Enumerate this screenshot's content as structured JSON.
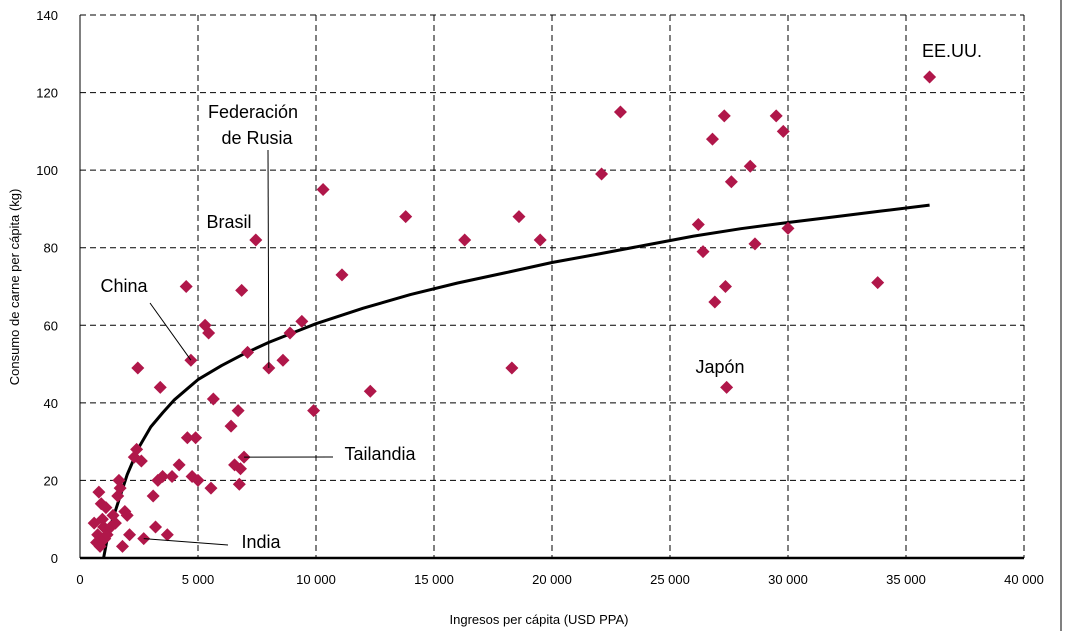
{
  "chart_data": {
    "type": "scatter",
    "xlabel": "Ingresos per cápita (USD PPA)",
    "ylabel": "Consumo de carne per cápita (kg)",
    "xlim": [
      0,
      40000
    ],
    "ylim": [
      0,
      140
    ],
    "x_ticks": [
      0,
      5000,
      10000,
      15000,
      20000,
      25000,
      30000,
      35000,
      40000
    ],
    "x_tick_labels": [
      "0",
      "5 000",
      "10 000",
      "15 000",
      "20 000",
      "25 000",
      "30 000",
      "35 000",
      "40 000"
    ],
    "y_ticks": [
      0,
      20,
      40,
      60,
      80,
      100,
      120,
      140
    ],
    "y_tick_labels": [
      "0",
      "20",
      "40",
      "60",
      "80",
      "100",
      "120",
      "140"
    ],
    "grid": true,
    "marker_color": "#b0174a",
    "trend_color": "#000000",
    "points": [
      [
        600,
        9
      ],
      [
        700,
        4
      ],
      [
        750,
        6
      ],
      [
        800,
        17
      ],
      [
        850,
        3
      ],
      [
        900,
        14
      ],
      [
        950,
        10
      ],
      [
        1000,
        8
      ],
      [
        1050,
        5
      ],
      [
        1100,
        13
      ],
      [
        1150,
        6
      ],
      [
        1300,
        8
      ],
      [
        1400,
        11
      ],
      [
        1500,
        9
      ],
      [
        1600,
        16
      ],
      [
        1650,
        20
      ],
      [
        1700,
        18
      ],
      [
        1800,
        3
      ],
      [
        1900,
        12
      ],
      [
        2000,
        11
      ],
      [
        2100,
        6
      ],
      [
        2300,
        26
      ],
      [
        2400,
        28
      ],
      [
        2450,
        49
      ],
      [
        2600,
        25
      ],
      [
        2700,
        5
      ],
      [
        3100,
        16
      ],
      [
        3200,
        8
      ],
      [
        3300,
        20
      ],
      [
        3400,
        44
      ],
      [
        3500,
        21
      ],
      [
        3700,
        6
      ],
      [
        3900,
        21
      ],
      [
        4200,
        24
      ],
      [
        4500,
        70
      ],
      [
        4550,
        31
      ],
      [
        4700,
        51
      ],
      [
        4750,
        21
      ],
      [
        4900,
        31
      ],
      [
        5000,
        20
      ],
      [
        5300,
        60
      ],
      [
        5450,
        58
      ],
      [
        5550,
        18
      ],
      [
        5650,
        41
      ],
      [
        6400,
        34
      ],
      [
        6550,
        24
      ],
      [
        6700,
        38
      ],
      [
        6750,
        19
      ],
      [
        6800,
        23
      ],
      [
        6850,
        69
      ],
      [
        6950,
        26
      ],
      [
        7100,
        53
      ],
      [
        7450,
        82
      ],
      [
        8000,
        49
      ],
      [
        8600,
        51
      ],
      [
        8900,
        58
      ],
      [
        9400,
        61
      ],
      [
        9900,
        38
      ],
      [
        10300,
        95
      ],
      [
        11100,
        73
      ],
      [
        12300,
        43
      ],
      [
        13800,
        88
      ],
      [
        16300,
        82
      ],
      [
        18300,
        49
      ],
      [
        18600,
        88
      ],
      [
        19500,
        82
      ],
      [
        22100,
        99
      ],
      [
        22900,
        115
      ],
      [
        26200,
        86
      ],
      [
        26400,
        79
      ],
      [
        26800,
        108
      ],
      [
        26900,
        66
      ],
      [
        27300,
        114
      ],
      [
        27350,
        70
      ],
      [
        27400,
        44
      ],
      [
        27600,
        97
      ],
      [
        28400,
        101
      ],
      [
        28600,
        81
      ],
      [
        29500,
        114
      ],
      [
        29800,
        110
      ],
      [
        30000,
        85
      ],
      [
        33800,
        71
      ],
      [
        36000,
        124
      ]
    ],
    "trend": {
      "x": [
        1000,
        1200,
        1500,
        2000,
        2500,
        3000,
        3500,
        4000,
        4500,
        5000,
        6000,
        7000,
        8000,
        9000,
        10000,
        12000,
        14000,
        16000,
        18000,
        20000,
        22000,
        24000,
        26000,
        28000,
        30000,
        32000,
        34000,
        36000
      ],
      "y": [
        0,
        6.5,
        12.2,
        21.5,
        28.6,
        33.8,
        37.4,
        40.8,
        43.4,
        46.0,
        49.6,
        52.8,
        55.6,
        58.0,
        60.4,
        64.4,
        67.9,
        70.9,
        73.5,
        76.2,
        78.4,
        80.7,
        83.0,
        84.9,
        86.5,
        88.0,
        89.5,
        91.0
      ]
    },
    "annotations": [
      {
        "text": "EE.UU.",
        "x": 36000,
        "y": 124
      },
      {
        "text": "Japón",
        "x": 27400,
        "y": 44
      },
      {
        "text": "Federación",
        "x": 8000,
        "y": 49
      },
      {
        "text": "de Rusia",
        "x": 8000,
        "y": 49
      },
      {
        "text": "Brasil",
        "x": 7450,
        "y": 82
      },
      {
        "text": "China",
        "x": 4700,
        "y": 51
      },
      {
        "text": "Tailandia",
        "x": 6950,
        "y": 26
      },
      {
        "text": "India",
        "x": 2700,
        "y": 5
      }
    ]
  }
}
